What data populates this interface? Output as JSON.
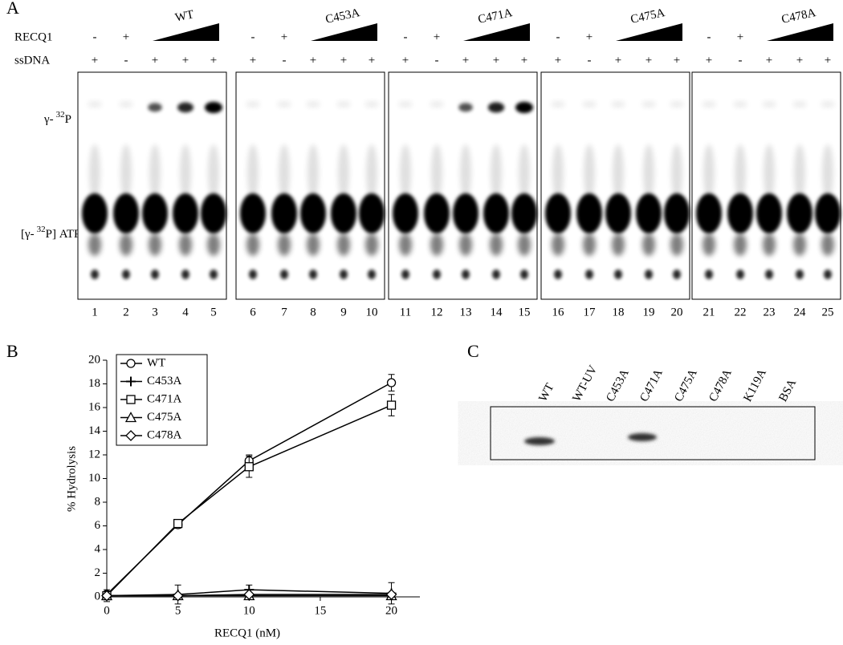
{
  "panel_a": {
    "label": "A",
    "row_labels": [
      "RECQ1",
      "ssDNA"
    ],
    "band_labels": {
      "top": [
        "γ-",
        "32",
        "P"
      ],
      "bottom": [
        "[γ-",
        "32",
        "P] ATP"
      ]
    },
    "groups": [
      {
        "name": "WT",
        "recq1": [
          "-",
          "+"
        ],
        "ssdna": [
          "+",
          "-",
          "+",
          "+",
          "+"
        ],
        "lanes": [
          1,
          2,
          3,
          4,
          5
        ]
      },
      {
        "name": "C453A",
        "recq1": [
          "-",
          "+"
        ],
        "ssdna": [
          "+",
          "-",
          "+",
          "+",
          "+"
        ],
        "lanes": [
          6,
          7,
          8,
          9,
          10
        ]
      },
      {
        "name": "C471A",
        "recq1": [
          "-",
          "+"
        ],
        "ssdna": [
          "+",
          "-",
          "+",
          "+",
          "+"
        ],
        "lanes": [
          11,
          12,
          13,
          14,
          15
        ]
      },
      {
        "name": "C475A",
        "recq1": [
          "-",
          "+"
        ],
        "ssdna": [
          "+",
          "-",
          "+",
          "+",
          "+"
        ],
        "lanes": [
          16,
          17,
          18,
          19,
          20
        ]
      },
      {
        "name": "C478A",
        "recq1": [
          "-",
          "+"
        ],
        "ssdna": [
          "+",
          "-",
          "+",
          "+",
          "+"
        ],
        "lanes": [
          21,
          22,
          23,
          24,
          25
        ]
      }
    ]
  },
  "chart_data": {
    "type": "line",
    "panel_label": "B",
    "x_label": "RECQ1 (nM)",
    "y_label": "% Hydrolysis",
    "x": [
      0,
      5,
      10,
      20
    ],
    "xlim": [
      0,
      22
    ],
    "xticks": [
      0,
      5,
      10,
      15,
      20
    ],
    "ylim": [
      0,
      20
    ],
    "yticks": [
      0,
      2,
      4,
      6,
      8,
      10,
      12,
      14,
      16,
      18,
      20
    ],
    "legend": "top-left",
    "series": [
      {
        "name": "WT",
        "color": "#000000",
        "marker": "circle",
        "values": [
          0.2,
          6.1,
          11.5,
          18.1
        ],
        "errors": [
          0.2,
          0.3,
          0.5,
          0.7
        ]
      },
      {
        "name": "C453A",
        "color": "#000000",
        "marker": "plus",
        "values": [
          0.1,
          0.2,
          0.6,
          0.3
        ],
        "errors": [
          0.5,
          0.8,
          0.4,
          0.9
        ]
      },
      {
        "name": "C471A",
        "color": "#000000",
        "marker": "square",
        "values": [
          0.1,
          6.2,
          11.0,
          16.2
        ],
        "errors": [
          0.2,
          0.3,
          0.9,
          0.9
        ]
      },
      {
        "name": "C475A",
        "color": "#000000",
        "marker": "triangle",
        "values": [
          0.1,
          0.1,
          0.1,
          0.1
        ],
        "errors": [
          0.1,
          0.1,
          0.1,
          0.1
        ]
      },
      {
        "name": "C478A",
        "color": "#000000",
        "marker": "diamond",
        "values": [
          0.1,
          0.1,
          0.2,
          0.2
        ],
        "errors": [
          0.1,
          0.1,
          0.1,
          0.1
        ]
      }
    ]
  },
  "panel_c": {
    "label": "C",
    "lanes": [
      "WT",
      "WT-UV",
      "C453A",
      "C471A",
      "C475A",
      "C478A",
      "K119A",
      "BSA"
    ]
  }
}
